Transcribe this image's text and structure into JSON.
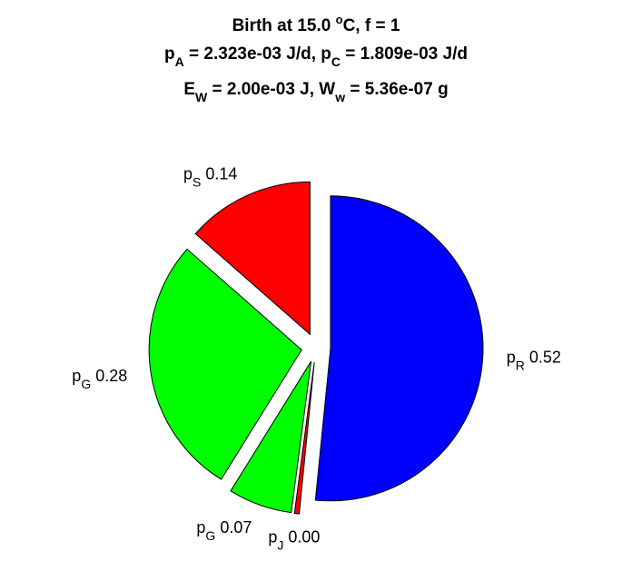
{
  "chart_data": {
    "type": "pie",
    "title_lines": [
      {
        "parts": [
          {
            "t": "Birth at 15.0 "
          },
          {
            "t": "o",
            "sup": true
          },
          {
            "t": "C, f = 1"
          }
        ]
      },
      {
        "parts": [
          {
            "t": "p"
          },
          {
            "t": "A",
            "sub": true
          },
          {
            "t": " = 2.323e-03 J/d, p"
          },
          {
            "t": "C",
            "sub": true
          },
          {
            "t": " = 1.809e-03 J/d"
          }
        ]
      },
      {
        "parts": [
          {
            "t": "E"
          },
          {
            "t": "W",
            "sub": true
          },
          {
            "t": " = 2.00e-03 J, W"
          },
          {
            "t": "w",
            "sub": true
          },
          {
            "t": " = 5.36e-07 g"
          }
        ]
      }
    ],
    "slices": [
      {
        "base": "p",
        "sub": "R",
        "value_label": "0.52",
        "value": 0.5158,
        "color": "#0000ff"
      },
      {
        "base": "p",
        "sub": "J",
        "value_label": "0.00",
        "value": 0.005,
        "color": "#ff0000"
      },
      {
        "base": "p",
        "sub": "G",
        "value_label": "0.07",
        "value": 0.0676,
        "color": "#00ff00"
      },
      {
        "base": "p",
        "sub": "G",
        "value_label": "0.28",
        "value": 0.2764,
        "color": "#00ff00"
      },
      {
        "base": "p",
        "sub": "S",
        "value_label": "0.14",
        "value": 0.1352,
        "color": "#ff0000"
      }
    ]
  }
}
